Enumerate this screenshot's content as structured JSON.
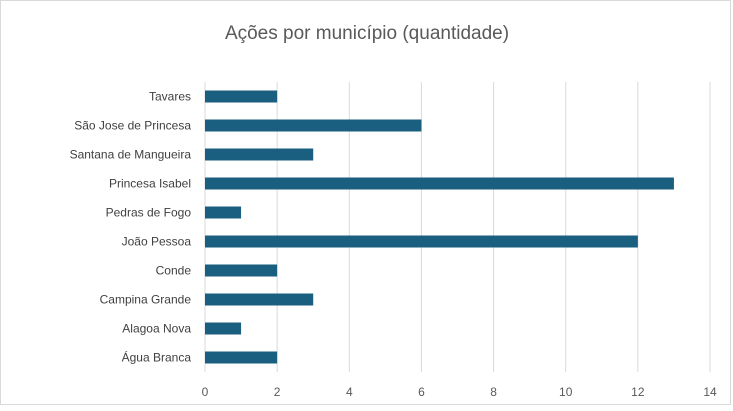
{
  "chart_data": {
    "type": "bar",
    "orientation": "horizontal",
    "title": "Ações por município (quantidade)",
    "xlabel": "",
    "ylabel": "",
    "categories": [
      "Tavares",
      "São Jose de Princesa",
      "Santana de Mangueira",
      "Princesa Isabel",
      "Pedras de Fogo",
      "João Pessoa",
      "Conde",
      "Campina Grande",
      "Alagoa Nova",
      "Água Branca"
    ],
    "values": [
      2,
      6,
      3,
      13,
      1,
      12,
      2,
      3,
      1,
      2
    ],
    "xlim": [
      0,
      14
    ],
    "xticks": [
      0,
      2,
      4,
      6,
      8,
      10,
      12,
      14
    ],
    "grid": true,
    "legend": "none",
    "bar_color": "#1a5e80",
    "grid_color": "#d9d9d9"
  }
}
